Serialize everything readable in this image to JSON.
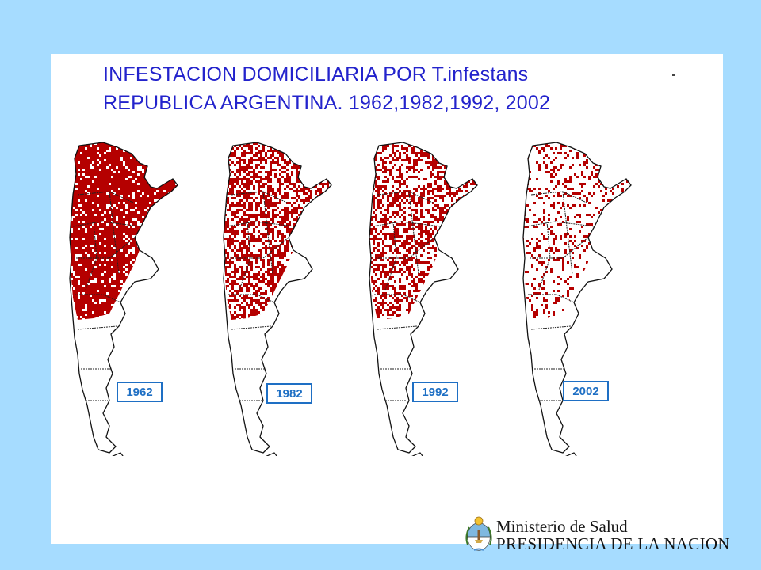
{
  "title": {
    "line1": "INFESTACION DOMICILIARIA POR T.infestans",
    "line2": "REPUBLICA ARGENTINA. 1962,1982,1992, 2002"
  },
  "maps": [
    {
      "year": "1962",
      "infestation_level": 0.85
    },
    {
      "year": "1982",
      "infestation_level": 0.55
    },
    {
      "year": "1992",
      "infestation_level": 0.45
    },
    {
      "year": "2002",
      "infestation_level": 0.2
    }
  ],
  "colors": {
    "background": "#a6dcff",
    "infestation": "#b50000",
    "title": "#2323cc",
    "year_label": "#1e6fc4"
  },
  "footer": {
    "ministry": "Ministerio de Salud",
    "presidency": "PRESIDENCIA DE LA NACION",
    "logo_icon": "argentine-coat-of-arms-icon"
  }
}
